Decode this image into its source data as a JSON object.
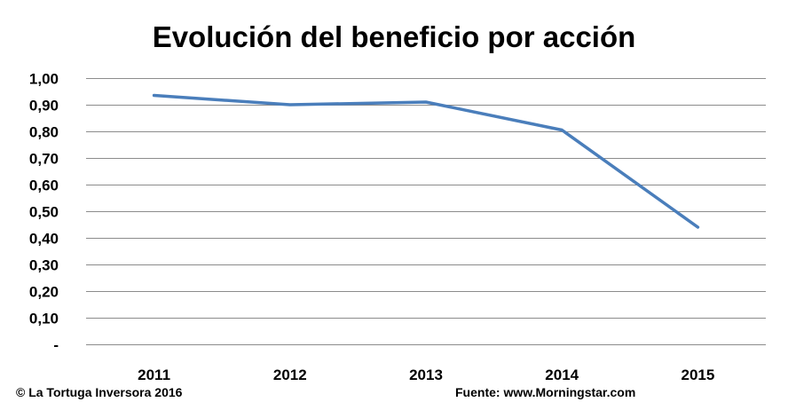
{
  "chart_data": {
    "type": "line",
    "title": "Evolución del beneficio por acción",
    "xlabel": "",
    "ylabel": "",
    "categories": [
      "2011",
      "2012",
      "2013",
      "2014",
      "2015"
    ],
    "series": [
      {
        "values": [
          0.935,
          0.9,
          0.91,
          0.805,
          0.44
        ],
        "color": "#4a7ebb"
      }
    ],
    "ylim": [
      0,
      1.0
    ],
    "y_ticks": [
      {
        "value": 1.0,
        "label": "1,00"
      },
      {
        "value": 0.9,
        "label": "0,90"
      },
      {
        "value": 0.8,
        "label": "0,80"
      },
      {
        "value": 0.7,
        "label": "0,70"
      },
      {
        "value": 0.6,
        "label": "0,60"
      },
      {
        "value": 0.5,
        "label": "0,50"
      },
      {
        "value": 0.4,
        "label": "0,40"
      },
      {
        "value": 0.3,
        "label": "0,30"
      },
      {
        "value": 0.2,
        "label": "0,20"
      },
      {
        "value": 0.1,
        "label": "0,10"
      },
      {
        "value": 0.0,
        "label": "-"
      }
    ],
    "grid": true,
    "gridline_color": "#8c8c8c",
    "legend": "none"
  },
  "footer": {
    "copyright": "© La Tortuga Inversora 2016",
    "source": "Fuente: www.Morningstar.com"
  }
}
